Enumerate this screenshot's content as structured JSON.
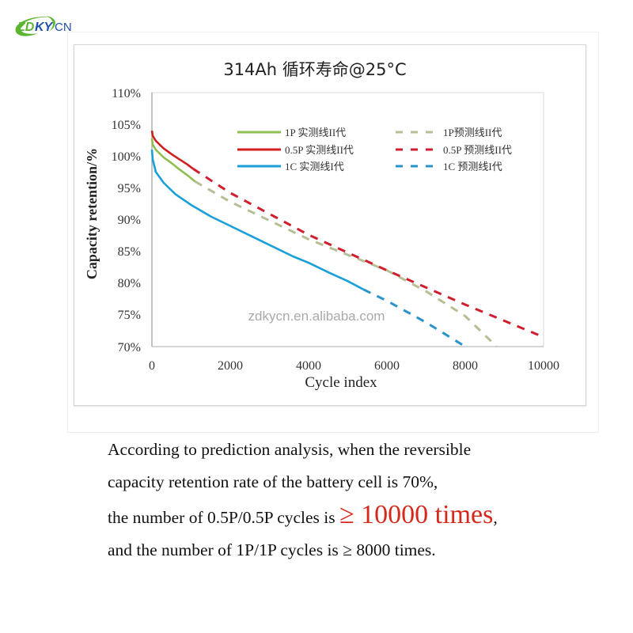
{
  "brand": {
    "logo_text_left": "ZD",
    "logo_text_mid": "KY",
    "logo_text_right": "CN",
    "colors": {
      "green": "#5cb531",
      "blue": "#1f4fa8"
    }
  },
  "chart": {
    "title": "314Ah 循环寿命@25°C",
    "watermark": "zdkycn.en.alibaba.com",
    "ylabel": "Capacity retention/%",
    "xlabel": "Cycle index",
    "yticks": [
      "110%",
      "105%",
      "100%",
      "95%",
      "90%",
      "85%",
      "80%",
      "75%",
      "70%"
    ],
    "xticks": [
      "0",
      "2000",
      "4000",
      "6000",
      "8000",
      "10000"
    ],
    "legend": [
      {
        "label": "1P 实测线II代",
        "color": "#8fbf4f",
        "style": "solid"
      },
      {
        "label": "0.5P 实测线II代",
        "color": "#d01e1e",
        "style": "solid"
      },
      {
        "label": "1C 实测线I代",
        "color": "#1aa0d8",
        "style": "solid"
      },
      {
        "label": "1P预测线II代",
        "color": "#b5bf96",
        "style": "dashed"
      },
      {
        "label": "0.5P 预测线II代",
        "color": "#d01e2e",
        "style": "dashed"
      },
      {
        "label": "1C 预测线I代",
        "color": "#2a94c8",
        "style": "dashed"
      }
    ]
  },
  "chart_data": {
    "type": "line",
    "title": "314Ah 循环寿命@25°C",
    "xlabel": "Cycle index",
    "ylabel": "Capacity retention/%",
    "xlim": [
      0,
      10000
    ],
    "ylim": [
      70,
      110
    ],
    "x_ticks": [
      0,
      2000,
      4000,
      6000,
      8000,
      10000
    ],
    "y_ticks": [
      70,
      75,
      80,
      85,
      90,
      95,
      100,
      105,
      110
    ],
    "grid": false,
    "legend_position": "upper right inside",
    "series": [
      {
        "name": "1P 实测线II代",
        "style": "solid",
        "color": "#8fbf4f",
        "x": [
          0,
          20,
          100,
          300,
          500,
          700,
          900,
          1100
        ],
        "y": [
          102.8,
          101.8,
          101.0,
          99.8,
          98.9,
          97.9,
          97.0,
          96.0
        ]
      },
      {
        "name": "0.5P 实测线II代",
        "style": "solid",
        "color": "#d01e1e",
        "x": [
          0,
          20,
          100,
          300,
          500,
          700,
          900,
          1050
        ],
        "y": [
          104.0,
          103.2,
          102.4,
          101.2,
          100.3,
          99.5,
          98.7,
          98.0
        ]
      },
      {
        "name": "1C 实测线I代",
        "style": "solid",
        "color": "#1aa0d8",
        "x": [
          0,
          20,
          100,
          300,
          600,
          1000,
          1500,
          2000,
          2500,
          3000,
          3600,
          4000,
          4500,
          5000,
          5400
        ],
        "y": [
          101.0,
          99.5,
          97.5,
          95.8,
          94.0,
          92.3,
          90.5,
          89.0,
          87.5,
          86.0,
          84.2,
          83.2,
          81.7,
          80.3,
          79.0
        ]
      },
      {
        "name": "1P预测线II代",
        "style": "dashed",
        "color": "#b5bf96",
        "x": [
          1100,
          2000,
          4000,
          6000,
          7000,
          8000,
          8800
        ],
        "y": [
          96.0,
          92.8,
          86.9,
          82.0,
          78.7,
          74.8,
          70.0
        ]
      },
      {
        "name": "0.5P 预测线II代",
        "style": "dashed",
        "color": "#d01e2e",
        "x": [
          1050,
          2000,
          4000,
          6000,
          8000,
          10000
        ],
        "y": [
          98.0,
          94.2,
          87.6,
          82.0,
          76.6,
          71.5
        ]
      },
      {
        "name": "1C 预测线I代",
        "style": "dashed",
        "color": "#2a94c8",
        "x": [
          5400,
          6000,
          7000,
          8000
        ],
        "y": [
          79.0,
          77.2,
          73.8,
          70.0
        ]
      }
    ],
    "annotations": [
      "zdkycn.en.alibaba.com"
    ]
  },
  "caption": {
    "line1": "According to prediction analysis, when the reversible",
    "line2": "capacity retention rate of the battery cell is 70%,",
    "line3_prefix": "the number of 0.5P/0.5P cycles is ",
    "line3_highlight": "≥ 10000 times",
    "line3_suffix": ",",
    "line4": "and the number of 1P/1P cycles is ≥ 8000 times.",
    "highlight_color": "#d8281c"
  }
}
